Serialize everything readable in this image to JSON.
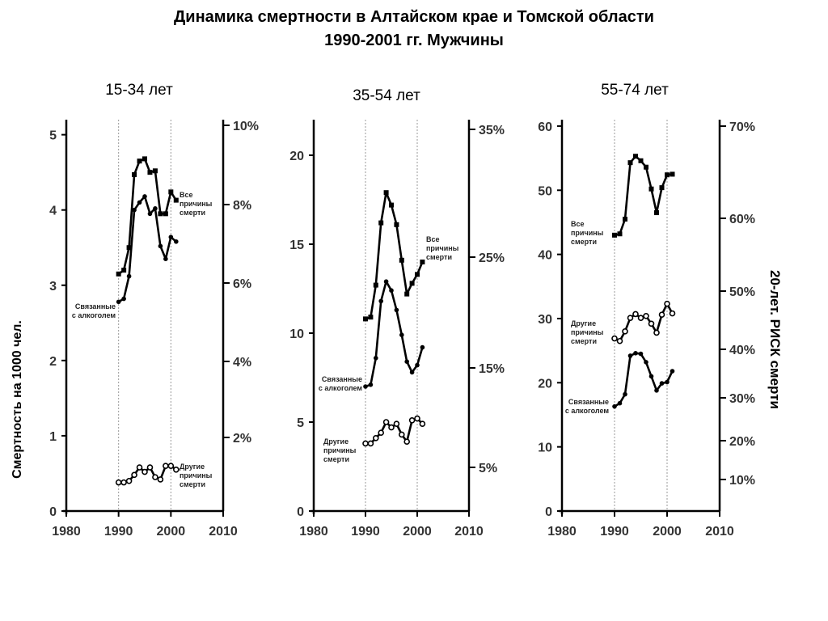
{
  "title": "Динамика смертности в Алтайском крае и Томской области",
  "subtitle": "1990-2001 гг. Мужчины",
  "ylabel_left": "Смертность на 1000 чел.",
  "ylabel_right": "20-лет. РИСК смерти",
  "chart_data": [
    {
      "type": "line",
      "title": "15-34 лет",
      "xlim": [
        1980,
        2010
      ],
      "xticks": [
        "1980",
        "1990",
        "2000",
        "2010"
      ],
      "ylim": [
        0,
        5.2
      ],
      "yticks": [
        "0",
        "1",
        "2",
        "3",
        "4",
        "5"
      ],
      "y2_ticks": [
        "2%",
        "4%",
        "6%",
        "8%",
        "10%"
      ],
      "grid_x": [
        1990,
        2000
      ],
      "series": [
        {
          "name": "Все причины смерти",
          "marker": "square",
          "label_lines": [
            "Все",
            "причины",
            "смерти"
          ],
          "x": [
            1990,
            1991,
            1992,
            1993,
            1994,
            1995,
            1996,
            1997,
            1998,
            1999,
            2000,
            2001
          ],
          "y": [
            3.15,
            3.2,
            3.5,
            4.47,
            4.65,
            4.68,
            4.5,
            4.52,
            3.95,
            3.95,
            4.24,
            4.13
          ]
        },
        {
          "name": "Связанные с алкоголем",
          "marker": "circle",
          "label_lines": [
            "Связанные",
            "с алкоголем"
          ],
          "x": [
            1990,
            1991,
            1992,
            1993,
            1994,
            1995,
            1996,
            1997,
            1998,
            1999,
            2000,
            2001
          ],
          "y": [
            2.78,
            2.82,
            3.12,
            4.0,
            4.1,
            4.18,
            3.95,
            4.02,
            3.52,
            3.35,
            3.64,
            3.58
          ]
        },
        {
          "name": "Другие причины смерти",
          "marker": "open-circle",
          "label_lines": [
            "Другие",
            "причины",
            "смерти"
          ],
          "x": [
            1990,
            1991,
            1992,
            1993,
            1994,
            1995,
            1996,
            1997,
            1998,
            1999,
            2000,
            2001
          ],
          "y": [
            0.38,
            0.38,
            0.4,
            0.48,
            0.58,
            0.52,
            0.58,
            0.45,
            0.42,
            0.6,
            0.6,
            0.55
          ]
        }
      ]
    },
    {
      "type": "line",
      "title": "35-54 лет",
      "xlim": [
        1980,
        2010
      ],
      "xticks": [
        "1980",
        "1990",
        "2000",
        "2010"
      ],
      "ylim": [
        0,
        22
      ],
      "yticks": [
        "0",
        "5",
        "10",
        "15",
        "20"
      ],
      "y2_ticks": [
        "5%",
        "15%",
        "25%",
        "35%"
      ],
      "grid_x": [
        1990,
        2000
      ],
      "series": [
        {
          "name": "Все причины смерти",
          "marker": "square",
          "label_lines": [
            "Все",
            "причины",
            "смерти"
          ],
          "x": [
            1990,
            1991,
            1992,
            1993,
            1994,
            1995,
            1996,
            1997,
            1998,
            1999,
            2000,
            2001
          ],
          "y": [
            10.8,
            10.9,
            12.7,
            16.2,
            17.9,
            17.2,
            16.1,
            14.1,
            12.2,
            12.8,
            13.3,
            14.0
          ]
        },
        {
          "name": "Связанные с алкоголем",
          "marker": "circle",
          "label_lines": [
            "Связанные",
            "с алкоголем"
          ],
          "x": [
            1990,
            1991,
            1992,
            1993,
            1994,
            1995,
            1996,
            1997,
            1998,
            1999,
            2000,
            2001
          ],
          "y": [
            7.0,
            7.1,
            8.6,
            11.8,
            12.9,
            12.4,
            11.3,
            9.9,
            8.4,
            7.8,
            8.2,
            9.2
          ]
        },
        {
          "name": "Другие причины смерти",
          "marker": "open-circle",
          "label_lines": [
            "Другие",
            "причины",
            "смерти"
          ],
          "x": [
            1990,
            1991,
            1992,
            1993,
            1994,
            1995,
            1996,
            1997,
            1998,
            1999,
            2000,
            2001
          ],
          "y": [
            3.8,
            3.8,
            4.1,
            4.4,
            5.0,
            4.7,
            4.9,
            4.3,
            3.9,
            5.1,
            5.2,
            4.9
          ]
        }
      ]
    },
    {
      "type": "line",
      "title": "55-74 лет",
      "xlim": [
        1980,
        2010
      ],
      "xticks": [
        "1980",
        "1990",
        "2000",
        "2010"
      ],
      "ylim": [
        0,
        61
      ],
      "yticks": [
        "0",
        "10",
        "20",
        "30",
        "40",
        "50",
        "60"
      ],
      "y2_ticks": [
        "10%",
        "20%",
        "30%",
        "40%",
        "50%",
        "60%",
        "70%"
      ],
      "grid_x": [
        1990,
        2000
      ],
      "series": [
        {
          "name": "Все причины смерти",
          "marker": "square",
          "label_lines": [
            "Все",
            "причины",
            "смерти"
          ],
          "x": [
            1990,
            1991,
            1992,
            1993,
            1994,
            1995,
            1996,
            1997,
            1998,
            1999,
            2000,
            2001
          ],
          "y": [
            43.0,
            43.2,
            45.5,
            54.3,
            55.3,
            54.6,
            53.6,
            50.2,
            46.5,
            50.4,
            52.4,
            52.5
          ]
        },
        {
          "name": "Другие причины смерти",
          "marker": "open-circle",
          "label_lines": [
            "Другие",
            "причины",
            "смерти"
          ],
          "x": [
            1990,
            1991,
            1992,
            1993,
            1994,
            1995,
            1996,
            1997,
            1998,
            1999,
            2000,
            2001
          ],
          "y": [
            26.9,
            26.5,
            28.0,
            30.1,
            30.7,
            30.1,
            30.4,
            29.2,
            27.8,
            30.6,
            32.3,
            30.8
          ]
        },
        {
          "name": "Связанные с алкоголем",
          "marker": "circle",
          "label_lines": [
            "Связанные",
            "с алкоголем"
          ],
          "x": [
            1990,
            1991,
            1992,
            1993,
            1994,
            1995,
            1996,
            1997,
            1998,
            1999,
            2000,
            2001
          ],
          "y": [
            16.3,
            16.8,
            18.2,
            24.2,
            24.6,
            24.5,
            23.2,
            21.0,
            18.8,
            19.9,
            20.1,
            21.8
          ]
        }
      ]
    }
  ]
}
